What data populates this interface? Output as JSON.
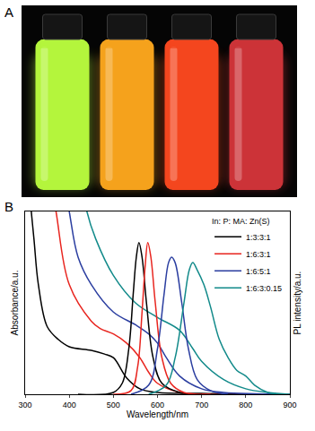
{
  "panel_a": {
    "label": "A",
    "vial_colors": [
      "#b4f53c",
      "#f5a21c",
      "#f4461e",
      "#cc3338"
    ]
  },
  "chart_data": {
    "type": "line",
    "panel_label": "B",
    "x_label": "Wavelength/nm",
    "y_label": "Absorbance/a.u.",
    "y2_label": "PL intensity/a.u.",
    "legend_title": "In: P: MA: Zn(S)",
    "legend": "top-right",
    "grid": false,
    "tick_labels": "x",
    "xlim": [
      300,
      900
    ],
    "xticks": [
      300,
      400,
      500,
      600,
      700,
      800,
      900
    ],
    "ylim": [
      0,
      1
    ],
    "yticks": [],
    "y2lim": [
      0,
      1
    ],
    "y2ticks": [],
    "series": [
      {
        "name": "1:3:3:1",
        "color": "#000000",
        "absorbance": {
          "x": [
            300,
            310,
            320,
            330,
            350,
            375,
            400,
            450,
            480,
            500,
            530,
            560,
            600,
            700,
            800,
            900
          ],
          "y": [
            1.4,
            1.1,
            0.85,
            0.6,
            0.37,
            0.3,
            0.26,
            0.24,
            0.22,
            0.2,
            0.09,
            0.03,
            0.01,
            0.005,
            0.0,
            0.0
          ]
        },
        "pl": {
          "x": [
            420,
            500,
            520,
            535,
            545,
            552,
            558,
            565,
            575,
            590,
            610,
            650,
            700
          ],
          "y": [
            0.0,
            0.01,
            0.06,
            0.25,
            0.55,
            0.75,
            0.83,
            0.75,
            0.5,
            0.2,
            0.06,
            0.01,
            0.0
          ]
        }
      },
      {
        "name": "1:6:3:1",
        "color": "#e8251f",
        "absorbance": {
          "x": [
            350,
            370,
            400,
            450,
            470,
            500,
            530,
            560,
            580,
            600,
            650,
            700,
            900
          ],
          "y": [
            1.3,
            1.0,
            0.6,
            0.4,
            0.36,
            0.33,
            0.28,
            0.2,
            0.12,
            0.06,
            0.01,
            0.0,
            0.0
          ]
        },
        "pl": {
          "x": [
            500,
            540,
            555,
            565,
            572,
            578,
            585,
            595,
            610,
            630,
            660,
            720
          ],
          "y": [
            0.0,
            0.02,
            0.15,
            0.45,
            0.7,
            0.83,
            0.75,
            0.5,
            0.2,
            0.06,
            0.01,
            0.0
          ]
        }
      },
      {
        "name": "1:6:5:1",
        "color": "#2b3ea0",
        "absorbance": {
          "x": [
            380,
            400,
            420,
            450,
            500,
            550,
            580,
            600,
            620,
            650,
            700,
            750,
            900
          ],
          "y": [
            1.3,
            1.0,
            0.75,
            0.6,
            0.45,
            0.38,
            0.33,
            0.28,
            0.2,
            0.1,
            0.03,
            0.01,
            0.0
          ]
        },
        "pl": {
          "x": [
            540,
            580,
            600,
            615,
            625,
            632,
            640,
            655,
            670,
            690,
            720,
            760
          ],
          "y": [
            0.0,
            0.05,
            0.25,
            0.55,
            0.72,
            0.75,
            0.72,
            0.5,
            0.25,
            0.08,
            0.02,
            0.0
          ]
        }
      },
      {
        "name": "1:6:3:0.15",
        "color": "#128a8a",
        "absorbance": {
          "x": [
            420,
            440,
            460,
            500,
            550,
            600,
            650,
            680,
            700,
            750,
            800,
            850,
            900
          ],
          "y": [
            1.3,
            1.0,
            0.85,
            0.65,
            0.5,
            0.42,
            0.35,
            0.25,
            0.18,
            0.08,
            0.03,
            0.01,
            0.0
          ]
        },
        "pl": {
          "x": [
            580,
            620,
            640,
            660,
            672,
            680,
            690,
            705,
            720,
            740,
            760,
            780,
            800,
            820,
            850,
            880
          ],
          "y": [
            0.0,
            0.05,
            0.2,
            0.5,
            0.68,
            0.72,
            0.68,
            0.6,
            0.48,
            0.3,
            0.2,
            0.13,
            0.1,
            0.05,
            0.01,
            0.0
          ]
        }
      }
    ]
  }
}
